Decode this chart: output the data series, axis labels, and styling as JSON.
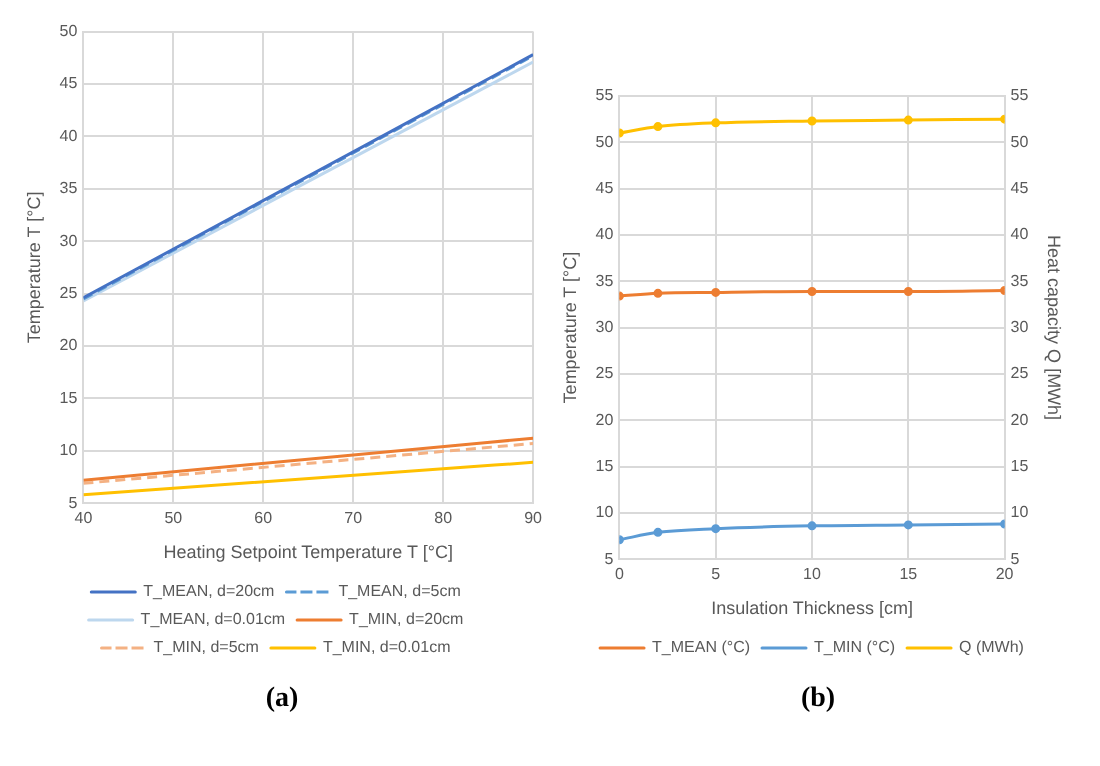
{
  "chart_data": [
    {
      "type": "line",
      "xlabel": "Heating Setpoint Temperature T [°C]",
      "ylabel": "Temperature T [°C]",
      "x": [
        40,
        90
      ],
      "xlim": [
        40,
        90
      ],
      "xticks": [
        40,
        50,
        60,
        70,
        80,
        90
      ],
      "ylim": [
        5,
        50
      ],
      "yticks": [
        5,
        10,
        15,
        20,
        25,
        30,
        35,
        40,
        45,
        50
      ],
      "grid": true,
      "legend": "bottom",
      "marker": "none",
      "annotations": [
        "(a)"
      ],
      "series": [
        {
          "name": "T_MEAN, d=20cm",
          "color": "#4472c4",
          "values": [
            24.6,
            47.8
          ],
          "line_style": "solid"
        },
        {
          "name": "T_MEAN, d=5cm",
          "color": "#5b9bd5",
          "values": [
            24.5,
            47.7
          ],
          "line_style": "dashed"
        },
        {
          "name": "T_MEAN, d=0.01cm",
          "color": "#bdd7ee",
          "values": [
            24.3,
            47.1
          ],
          "line_style": "solid"
        },
        {
          "name": "T_MIN, d=20cm",
          "color": "#ed7d31",
          "values": [
            7.2,
            11.2
          ],
          "line_style": "solid"
        },
        {
          "name": "T_MIN, d=5cm",
          "color": "#f4b183",
          "values": [
            6.9,
            10.7
          ],
          "line_style": "dashed"
        },
        {
          "name": "T_MIN, d=0.01cm",
          "color": "#ffc000",
          "values": [
            5.8,
            8.9
          ],
          "line_style": "solid"
        }
      ]
    },
    {
      "type": "line",
      "xlabel": "Insulation Thickness [cm]",
      "ylabel": "Temperature T [°C]",
      "y2label": "Heat capacity Q [MWh]",
      "x": [
        0,
        2,
        5,
        10,
        15,
        20
      ],
      "xlim": [
        0,
        20
      ],
      "xticks": [
        0,
        5,
        10,
        15,
        20
      ],
      "ylim": [
        5,
        55
      ],
      "yticks": [
        5,
        10,
        15,
        20,
        25,
        30,
        35,
        40,
        45,
        50,
        55
      ],
      "y2lim": [
        5,
        55
      ],
      "y2ticks": [
        5,
        10,
        15,
        20,
        25,
        30,
        35,
        40,
        45,
        50,
        55
      ],
      "grid": true,
      "legend": "bottom",
      "marker": "circle",
      "annotations": [
        "(b)"
      ],
      "series": [
        {
          "name": "T_MEAN (°C)",
          "color": "#ed7d31",
          "values": [
            33.4,
            33.7,
            33.8,
            33.9,
            33.9,
            34.0
          ]
        },
        {
          "name": "T_MIN (°C)",
          "color": "#5b9bd5",
          "values": [
            7.1,
            7.9,
            8.3,
            8.6,
            8.7,
            8.8
          ]
        },
        {
          "name": "Q (MWh)",
          "color": "#ffc000",
          "values": [
            51.0,
            51.7,
            52.1,
            52.3,
            52.4,
            52.5
          ],
          "axis": "y2"
        }
      ]
    }
  ]
}
